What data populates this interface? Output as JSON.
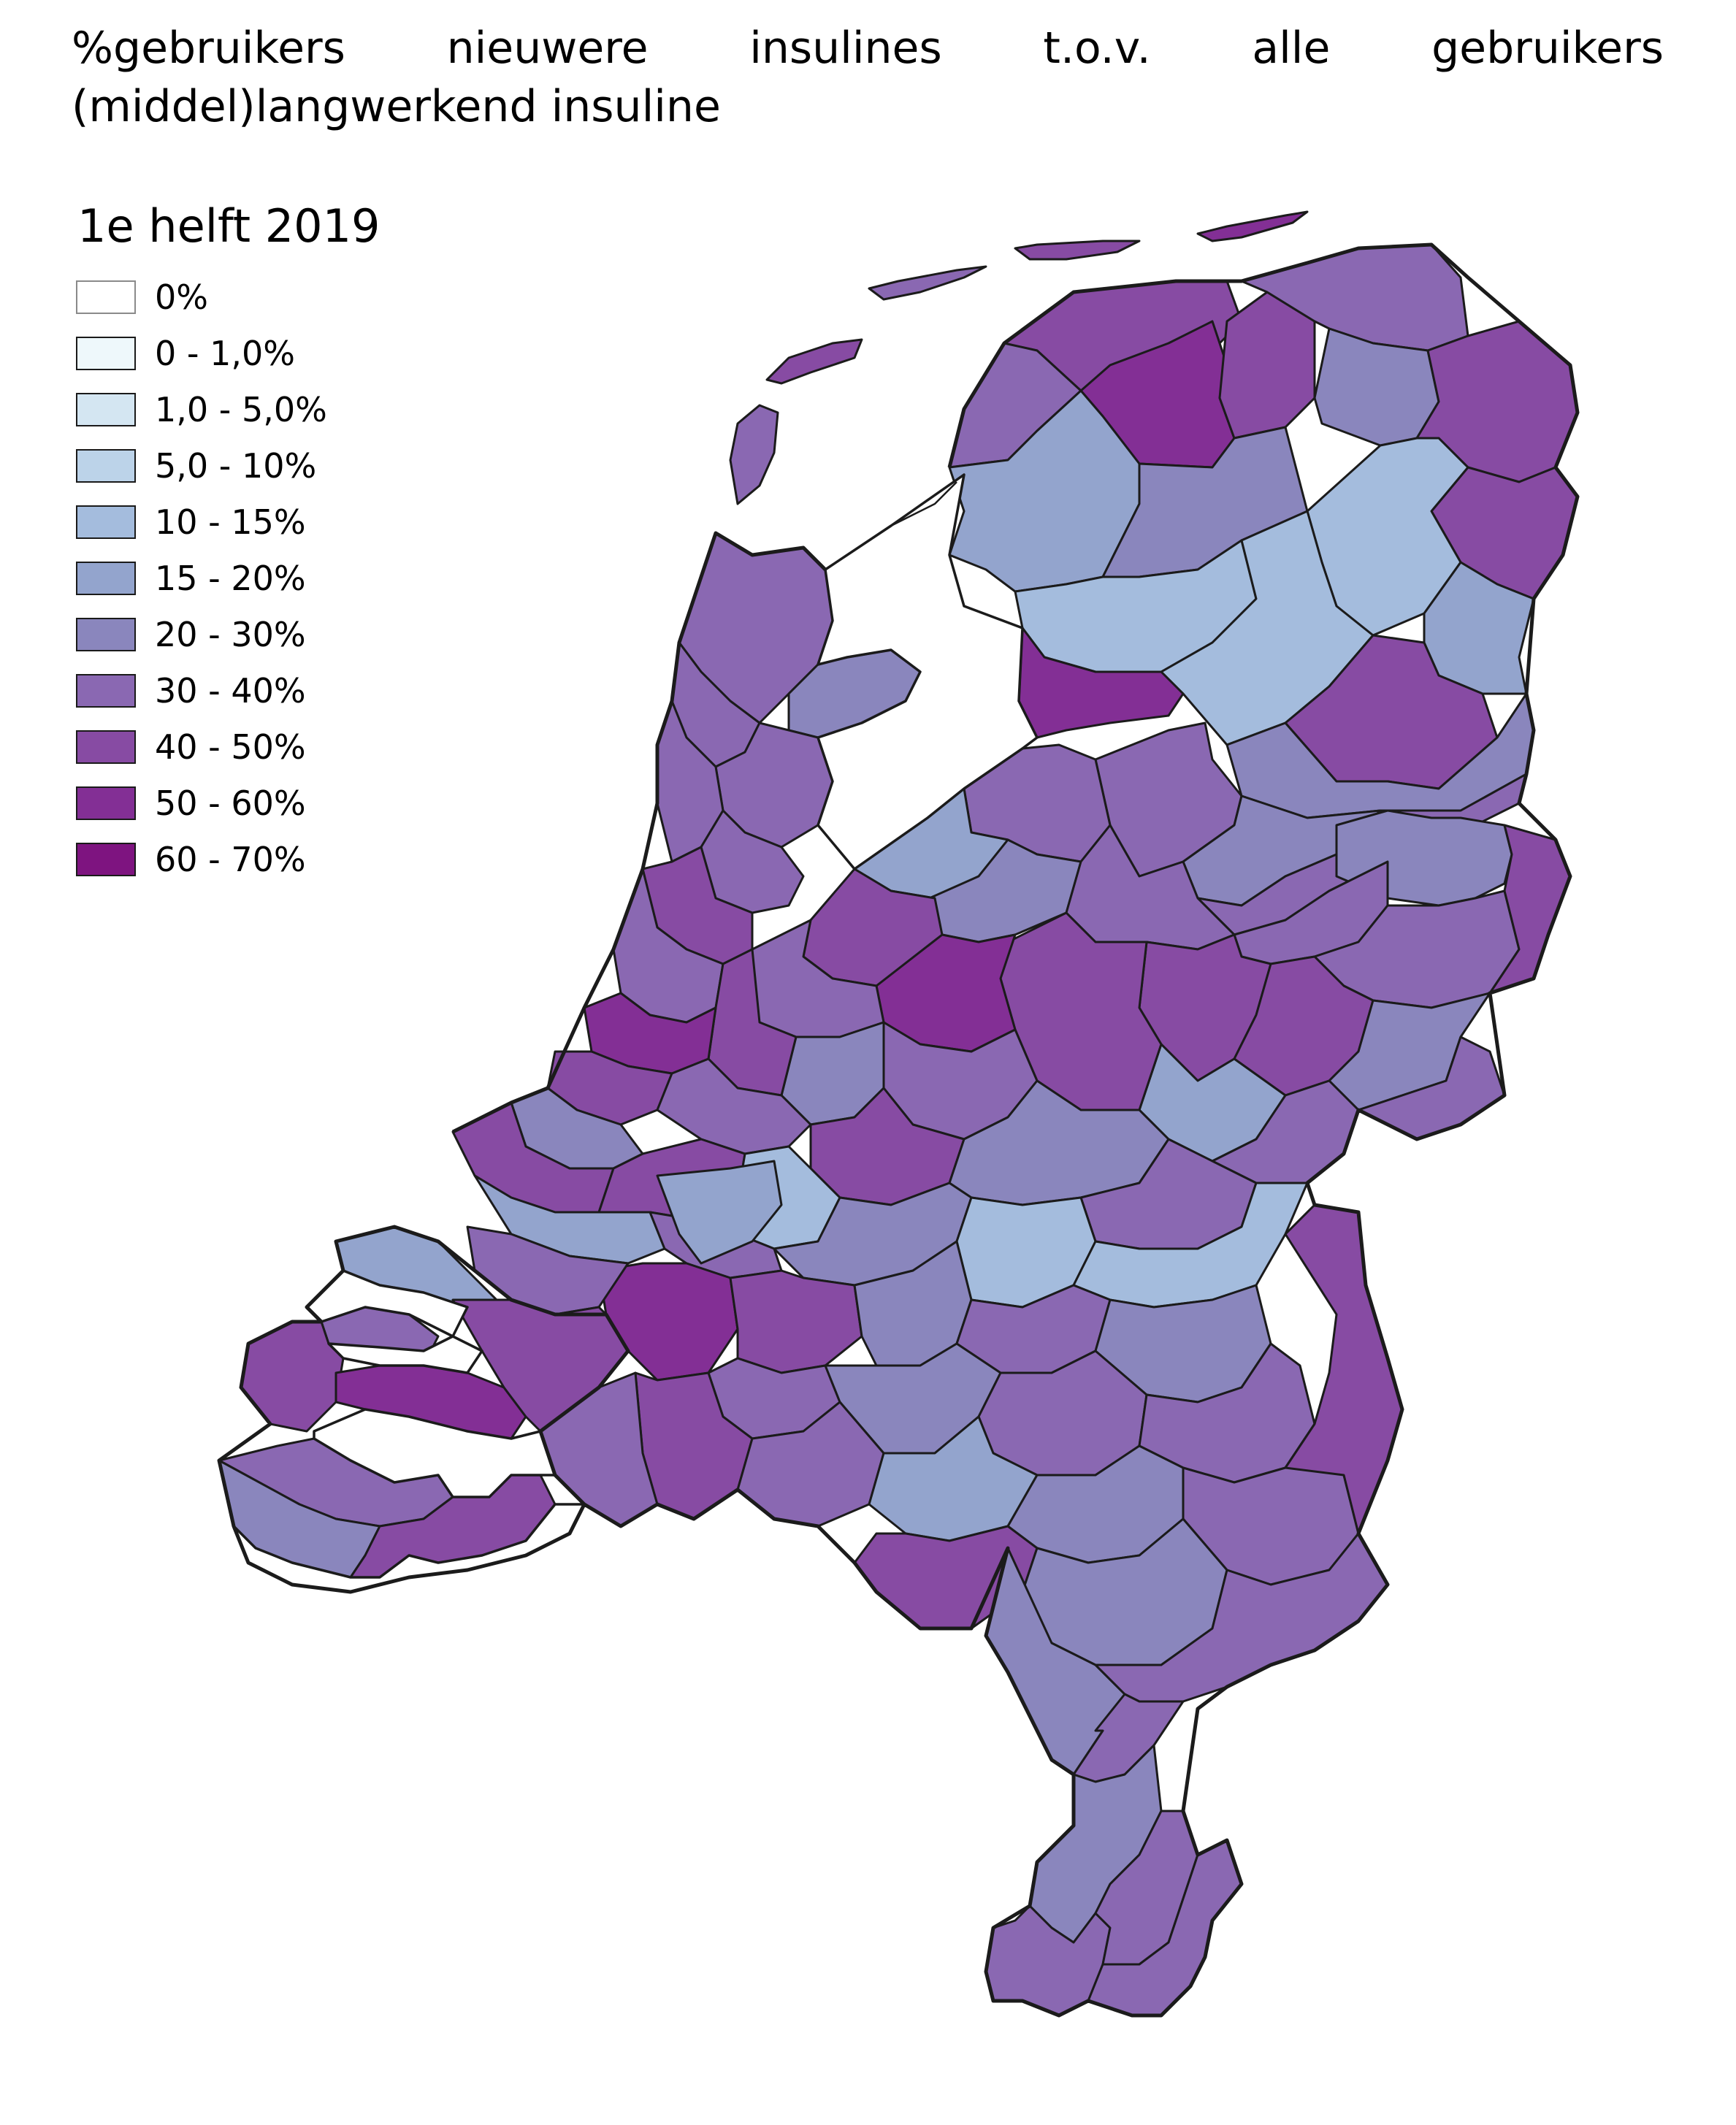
{
  "title": "%gebruikers nieuwere insulines t.o.v. alle gebruikers (middel)langwerkend insuline",
  "period": "1e helft 2019",
  "legend": [
    {
      "label": "0%",
      "color": "#ffffff"
    },
    {
      "label": "0 - 1,0%",
      "color": "#eef8fb"
    },
    {
      "label": "1,0 - 5,0%",
      "color": "#d4e6f2"
    },
    {
      "label": "5,0 - 10%",
      "color": "#bcd3e9"
    },
    {
      "label": "10 - 15%",
      "color": "#a4bcdd"
    },
    {
      "label": "15 - 20%",
      "color": "#93a4cd"
    },
    {
      "label": "20 - 30%",
      "color": "#8a86bd"
    },
    {
      "label": "30 - 40%",
      "color": "#8a68b2"
    },
    {
      "label": "40 - 50%",
      "color": "#874ba3"
    },
    {
      "label": "50 - 60%",
      "color": "#832f95"
    },
    {
      "label": "60 - 70%",
      "color": "#7e1480"
    }
  ],
  "chart_data": {
    "type": "choropleth",
    "classes": [
      "0%",
      "0 - 1,0%",
      "1,0 - 5,0%",
      "5,0 - 10%",
      "10 - 15%",
      "15 - 20%",
      "20 - 30%",
      "30 - 40%",
      "40 - 50%",
      "50 - 60%",
      "60 - 70%"
    ],
    "regions": [
      {
        "class": 8
      },
      {
        "class": 9
      },
      {
        "class": 8
      },
      {
        "class": 7
      },
      {
        "class": 6
      },
      {
        "class": 8
      },
      {
        "class": 8
      },
      {
        "class": 4
      },
      {
        "class": 5
      },
      {
        "class": 7
      },
      {
        "class": 5
      },
      {
        "class": 6
      },
      {
        "class": 4
      },
      {
        "class": 4
      },
      {
        "class": 9
      },
      {
        "class": 8
      },
      {
        "class": 6
      },
      {
        "class": 7
      },
      {
        "class": 6
      },
      {
        "class": 7
      },
      {
        "class": 6
      },
      {
        "class": 7
      },
      {
        "class": 7
      },
      {
        "class": 8
      },
      {
        "class": 7
      },
      {
        "class": 5
      },
      {
        "class": 6
      },
      {
        "class": 7
      },
      {
        "class": 8
      },
      {
        "class": 8
      },
      {
        "class": 6
      },
      {
        "class": 7
      },
      {
        "class": 5
      },
      {
        "class": 7
      },
      {
        "class": 8
      },
      {
        "class": 9
      },
      {
        "class": 8
      },
      {
        "class": 7
      },
      {
        "class": 7
      },
      {
        "class": 6
      },
      {
        "class": 8
      },
      {
        "class": 6
      },
      {
        "class": 7
      },
      {
        "class": 7
      },
      {
        "class": 6
      },
      {
        "class": 7
      },
      {
        "class": 7
      },
      {
        "class": 7
      },
      {
        "class": 7
      },
      {
        "class": 8
      },
      {
        "class": 7
      }
    ]
  }
}
